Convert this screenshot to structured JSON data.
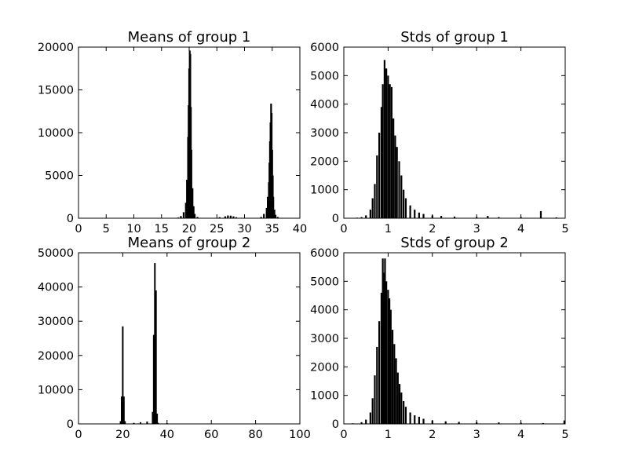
{
  "chart_data": [
    {
      "type": "bar",
      "title": "Means of group 1",
      "xlabel": "",
      "ylabel": "",
      "xlim": [
        0,
        40
      ],
      "ylim": [
        0,
        20000
      ],
      "xticks": [
        "0",
        "5",
        "10",
        "15",
        "20",
        "25",
        "30",
        "35",
        "40"
      ],
      "yticks": [
        "0",
        "5000",
        "10000",
        "15000",
        "20000"
      ],
      "grid": false,
      "series": [
        {
          "x": [
            18.0,
            18.5,
            19.0,
            19.4,
            19.6,
            19.8,
            19.9,
            20.0,
            20.1,
            20.2,
            20.3,
            20.4,
            20.6,
            20.8,
            21.0,
            21.5,
            25.5,
            26.5,
            27.0,
            27.5,
            28.0,
            28.5,
            29.5,
            33.0,
            33.5,
            34.0,
            34.2,
            34.4,
            34.5,
            34.6,
            34.7,
            34.8,
            34.9,
            35.0,
            35.1,
            35.2,
            35.4,
            35.6,
            36.0,
            36.5
          ],
          "values": [
            80,
            250,
            700,
            1800,
            4500,
            9500,
            13200,
            17500,
            19600,
            19200,
            13000,
            8000,
            3500,
            1400,
            500,
            150,
            120,
            220,
            320,
            300,
            220,
            120,
            50,
            150,
            500,
            1200,
            2500,
            4200,
            6500,
            9000,
            11200,
            13400,
            12300,
            8000,
            5000,
            2500,
            1000,
            400,
            150,
            50
          ]
        }
      ]
    },
    {
      "type": "bar",
      "title": "Stds of group 1",
      "xlabel": "",
      "ylabel": "",
      "xlim": [
        0,
        5
      ],
      "ylim": [
        0,
        6000
      ],
      "xticks": [
        "0",
        "1",
        "2",
        "3",
        "4",
        "5"
      ],
      "yticks": [
        "0",
        "1000",
        "2000",
        "3000",
        "4000",
        "5000",
        "6000"
      ],
      "grid": false,
      "series": [
        {
          "x": [
            0.3,
            0.4,
            0.5,
            0.6,
            0.65,
            0.7,
            0.75,
            0.8,
            0.85,
            0.88,
            0.92,
            0.96,
            1.0,
            1.04,
            1.08,
            1.12,
            1.16,
            1.2,
            1.25,
            1.3,
            1.35,
            1.4,
            1.5,
            1.6,
            1.7,
            1.8,
            2.0,
            2.2,
            2.5,
            3.0,
            3.25,
            3.5,
            4.0,
            4.45,
            4.8
          ],
          "values": [
            20,
            40,
            100,
            300,
            700,
            1200,
            2200,
            3000,
            3900,
            4700,
            5550,
            5250,
            5000,
            4700,
            4600,
            3500,
            2900,
            2500,
            2000,
            1500,
            1000,
            700,
            450,
            300,
            200,
            150,
            100,
            80,
            60,
            40,
            80,
            40,
            40,
            250,
            30
          ]
        }
      ]
    },
    {
      "type": "bar",
      "title": "Means of group 2",
      "xlabel": "",
      "ylabel": "",
      "xlim": [
        0,
        100
      ],
      "ylim": [
        0,
        50000
      ],
      "xticks": [
        "0",
        "20",
        "40",
        "60",
        "80",
        "100"
      ],
      "yticks": [
        "0",
        "10000",
        "20000",
        "30000",
        "40000",
        "50000"
      ],
      "grid": false,
      "series": [
        {
          "x": [
            19.0,
            19.5,
            20.0,
            20.5,
            21.0,
            25.0,
            28.0,
            31.0,
            33.5,
            34.0,
            34.5,
            35.0,
            35.5,
            36.0,
            40.0,
            45.0
          ],
          "values": [
            800,
            8000,
            28500,
            8000,
            800,
            300,
            500,
            700,
            3500,
            26000,
            47000,
            39000,
            3000,
            300,
            200,
            100
          ]
        }
      ]
    },
    {
      "type": "bar",
      "title": "Stds of group 2",
      "xlabel": "",
      "ylabel": "",
      "xlim": [
        0,
        5
      ],
      "ylim": [
        0,
        6000
      ],
      "xticks": [
        "0",
        "1",
        "2",
        "3",
        "4",
        "5"
      ],
      "yticks": [
        "0",
        "1000",
        "2000",
        "3000",
        "4000",
        "5000",
        "6000"
      ],
      "grid": false,
      "series": [
        {
          "x": [
            0.2,
            0.4,
            0.5,
            0.6,
            0.65,
            0.7,
            0.75,
            0.8,
            0.85,
            0.88,
            0.9,
            0.93,
            0.96,
            1.0,
            1.03,
            1.06,
            1.1,
            1.14,
            1.18,
            1.22,
            1.26,
            1.3,
            1.35,
            1.4,
            1.5,
            1.6,
            1.7,
            1.8,
            2.0,
            2.3,
            2.6,
            3.0,
            3.5,
            4.0,
            4.5,
            4.98
          ],
          "values": [
            20,
            60,
            150,
            400,
            900,
            1700,
            2700,
            3600,
            4600,
            5800,
            5300,
            5800,
            5000,
            4700,
            4400,
            4000,
            3300,
            2800,
            2300,
            1800,
            1400,
            1100,
            800,
            600,
            400,
            300,
            250,
            180,
            120,
            90,
            70,
            60,
            50,
            40,
            30,
            120
          ]
        }
      ]
    }
  ]
}
